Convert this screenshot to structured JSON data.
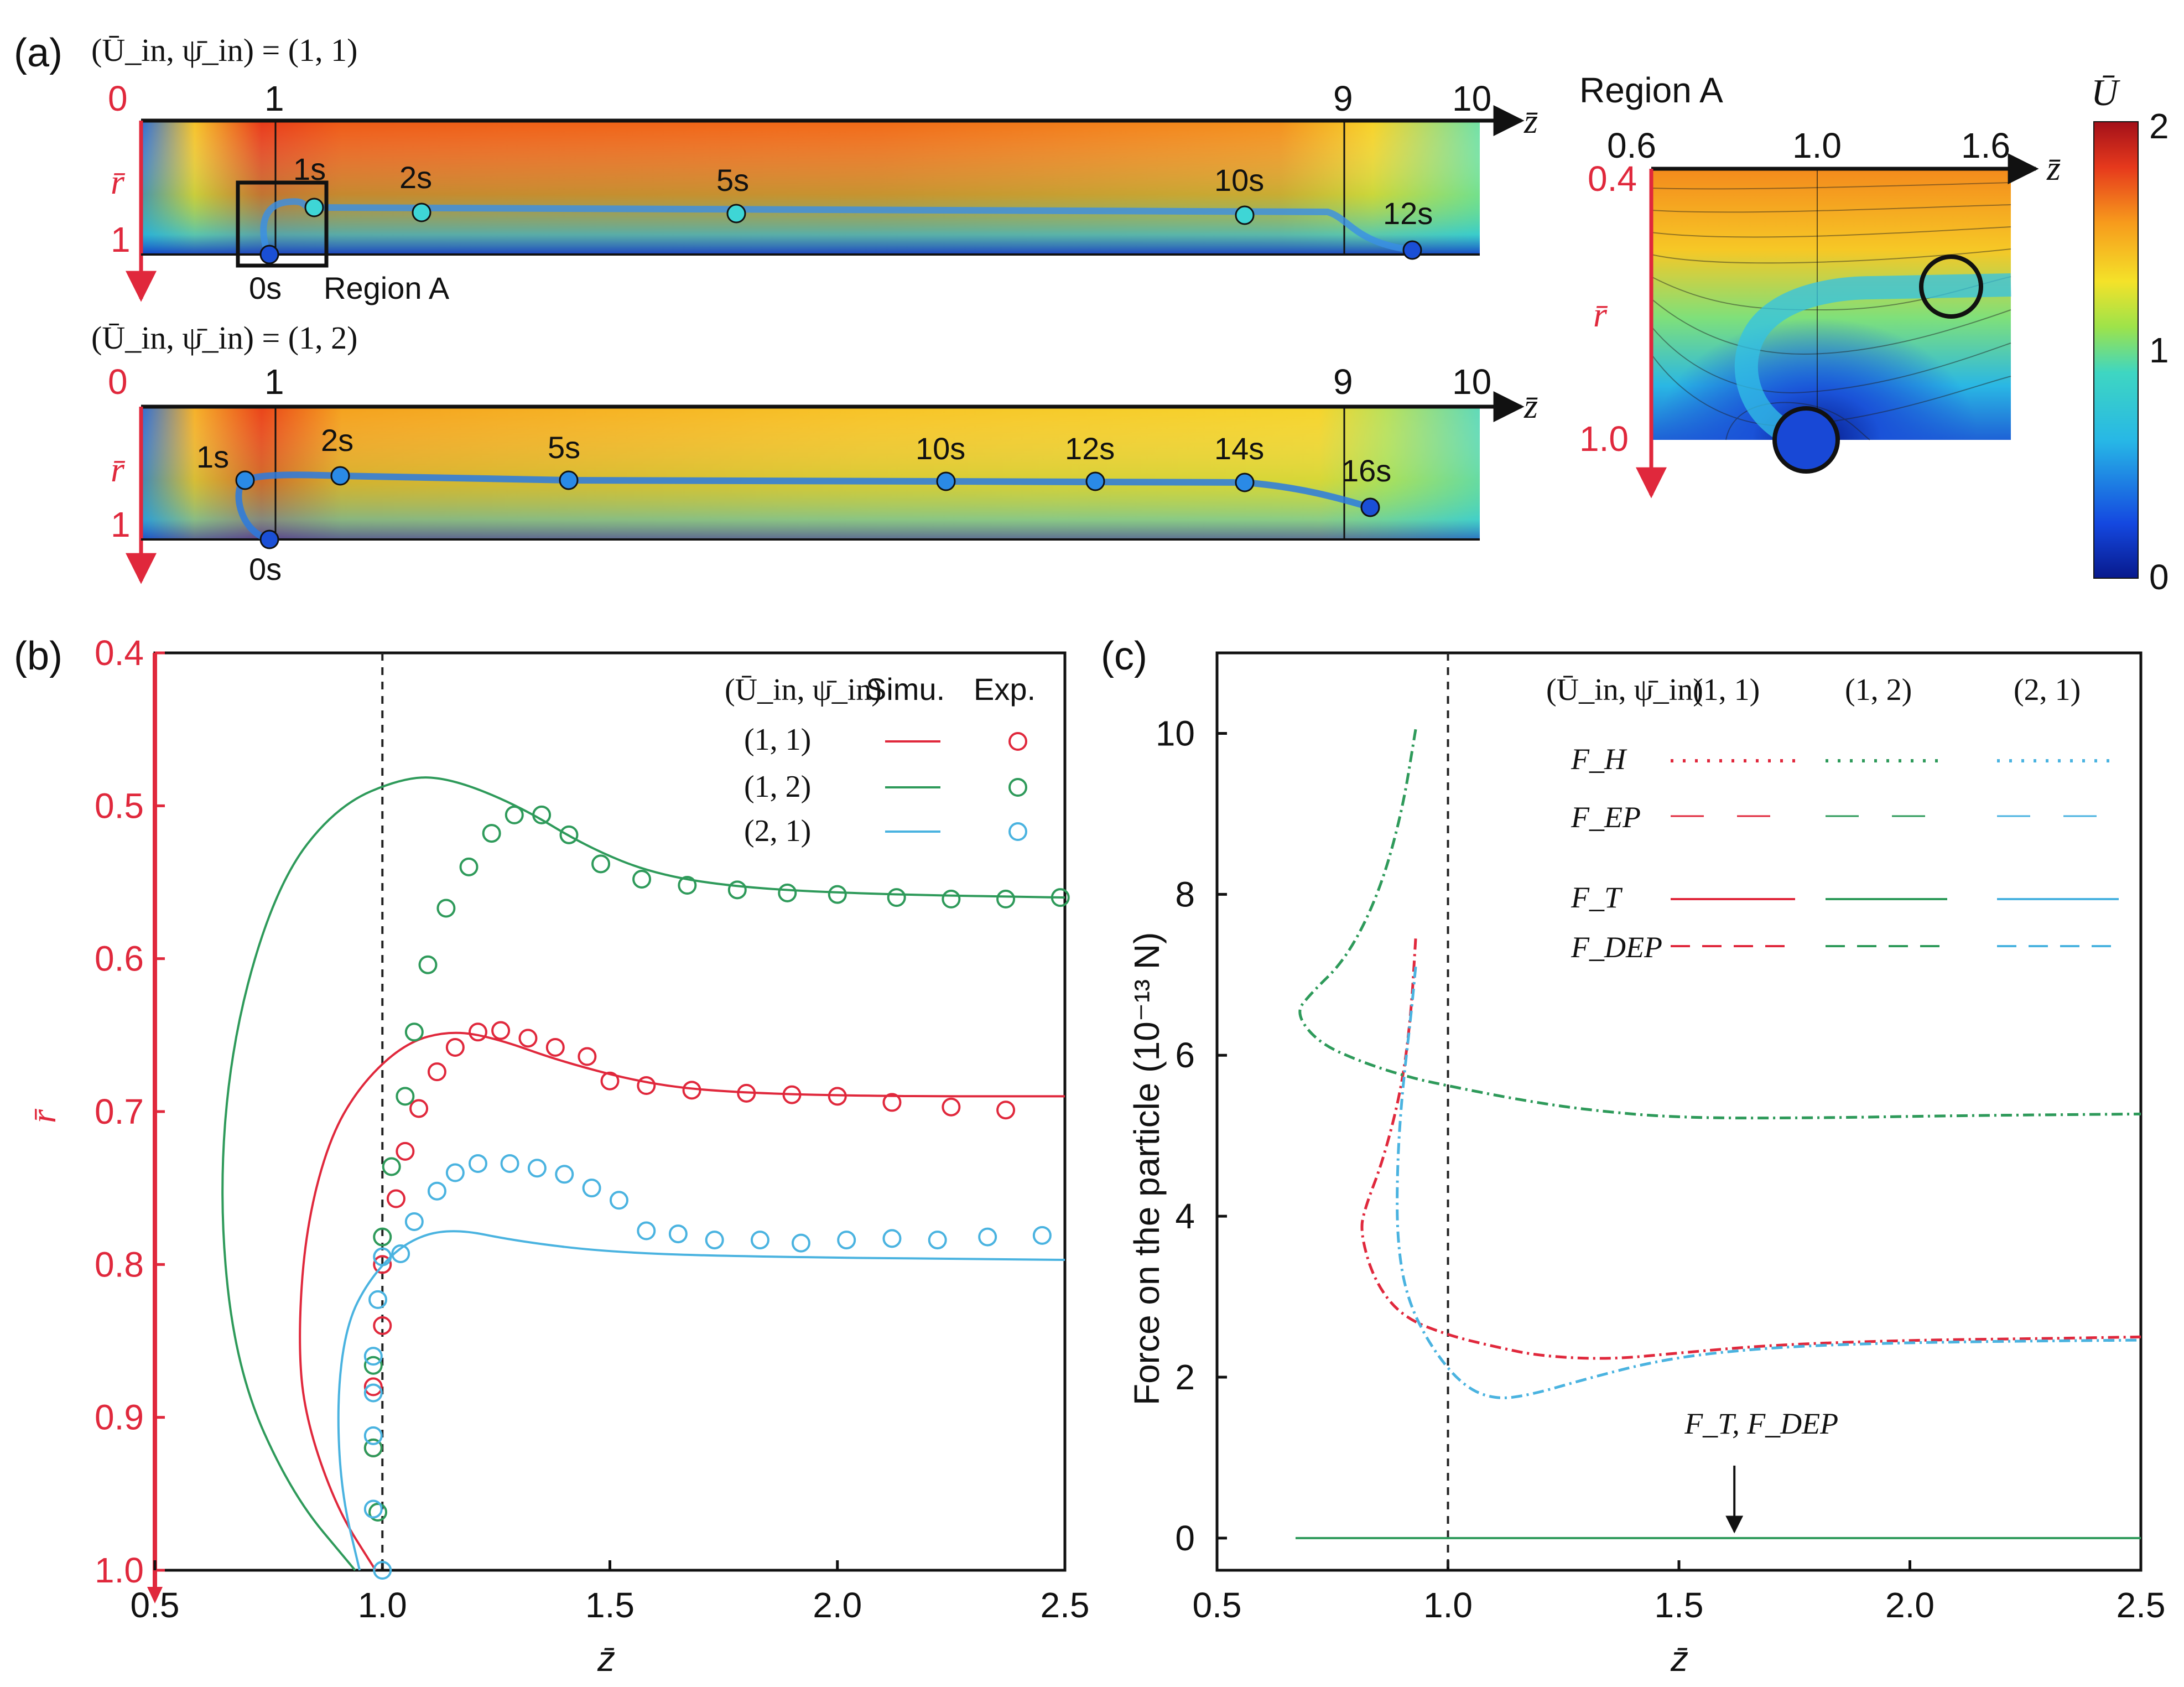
{
  "figure": {
    "panel_a_label": "(a)",
    "panel_b_label": "(b)",
    "panel_c_label": "(c)"
  },
  "colors": {
    "red": "#e0283c",
    "green": "#2e9a5a",
    "blue": "#4ab3e0",
    "axis_red": "#e0283c"
  },
  "panel_a": {
    "top": {
      "condition": "(Ū_in, ψ̄_in) = (1, 1)",
      "z_ticks": [
        "0",
        "1",
        "9",
        "10"
      ],
      "r_ticks": [
        "1"
      ],
      "r_axis": "r̄",
      "z_axis": "z̄",
      "time_labels": [
        "1s",
        "2s",
        "5s",
        "10s",
        "12s",
        "0s"
      ],
      "region_label": "Region A"
    },
    "bottom": {
      "condition": "(Ū_in, ψ̄_in) = (1, 2)",
      "z_ticks": [
        "0",
        "1",
        "9",
        "10"
      ],
      "r_ticks": [
        "1"
      ],
      "r_axis": "r̄",
      "z_axis": "z̄",
      "time_labels": [
        "1s",
        "2s",
        "5s",
        "10s",
        "12s",
        "14s",
        "16s",
        "0s"
      ]
    },
    "region_a": {
      "title": "Region A",
      "z_ticks": [
        "0.6",
        "1.0",
        "1.6"
      ],
      "r_ticks": [
        "0.4",
        "1.0"
      ],
      "r_axis": "r̄",
      "z_axis": "z̄"
    },
    "colorbar": {
      "label": "Ū",
      "ticks": [
        "2",
        "1",
        "0"
      ],
      "range": [
        0,
        2
      ]
    }
  },
  "chart_data": [
    {
      "panel": "b",
      "type": "line",
      "title": "",
      "xlabel": "z̄",
      "ylabel": "r̄",
      "xlim": [
        0.5,
        2.5
      ],
      "ylim": [
        0.4,
        1.0
      ],
      "y_inverted": true,
      "x_ticks": [
        "0.5",
        "1.0",
        "1.5",
        "2.0",
        "2.5"
      ],
      "y_ticks": [
        "0.4",
        "0.5",
        "0.6",
        "0.7",
        "0.8",
        "0.9",
        "1.0"
      ],
      "legend": {
        "header": "(Ū_in, ψ̄_in)",
        "col_simu": "Simu.",
        "col_exp": "Exp.",
        "entries": [
          "(1, 1)",
          "(1, 2)",
          "(2, 1)"
        ]
      },
      "vline_x": 1.0,
      "series": [
        {
          "name": "(1, 1)",
          "color": "#e0283c",
          "simu": [
            [
              0.985,
              1.0
            ],
            [
              0.9,
              0.96
            ],
            [
              0.83,
              0.9
            ],
            [
              0.815,
              0.85
            ],
            [
              0.83,
              0.78
            ],
            [
              0.88,
              0.72
            ],
            [
              0.95,
              0.683
            ],
            [
              1.05,
              0.655
            ],
            [
              1.15,
              0.647
            ],
            [
              1.25,
              0.652
            ],
            [
              1.4,
              0.668
            ],
            [
              1.6,
              0.683
            ],
            [
              1.8,
              0.688
            ],
            [
              2.1,
              0.69
            ],
            [
              2.5,
              0.69
            ]
          ],
          "exp": [
            [
              0.98,
              0.92
            ],
            [
              0.98,
              0.88
            ],
            [
              1.0,
              0.84
            ],
            [
              1.0,
              0.8
            ],
            [
              1.03,
              0.757
            ],
            [
              1.05,
              0.726
            ],
            [
              1.08,
              0.698
            ],
            [
              1.12,
              0.674
            ],
            [
              1.16,
              0.658
            ],
            [
              1.21,
              0.648
            ],
            [
              1.26,
              0.647
            ],
            [
              1.32,
              0.652
            ],
            [
              1.38,
              0.658
            ],
            [
              1.45,
              0.664
            ],
            [
              1.5,
              0.68
            ],
            [
              1.58,
              0.683
            ],
            [
              1.68,
              0.686
            ],
            [
              1.8,
              0.688
            ],
            [
              1.9,
              0.689
            ],
            [
              2.0,
              0.69
            ],
            [
              2.12,
              0.694
            ],
            [
              2.25,
              0.697
            ],
            [
              2.37,
              0.699
            ]
          ]
        },
        {
          "name": "(1, 2)",
          "color": "#2e9a5a",
          "simu": [
            [
              0.94,
              1.0
            ],
            [
              0.8,
              0.95
            ],
            [
              0.68,
              0.87
            ],
            [
              0.64,
              0.76
            ],
            [
              0.67,
              0.65
            ],
            [
              0.77,
              0.55
            ],
            [
              0.9,
              0.5
            ],
            [
              1.05,
              0.481
            ],
            [
              1.15,
              0.482
            ],
            [
              1.3,
              0.5
            ],
            [
              1.45,
              0.527
            ],
            [
              1.6,
              0.545
            ],
            [
              1.8,
              0.554
            ],
            [
              2.1,
              0.558
            ],
            [
              2.5,
              0.56
            ]
          ],
          "exp": [
            [
              0.99,
              0.962
            ],
            [
              0.98,
              0.92
            ],
            [
              0.98,
              0.866
            ],
            [
              1.0,
              0.782
            ],
            [
              1.02,
              0.736
            ],
            [
              1.05,
              0.69
            ],
            [
              1.07,
              0.648
            ],
            [
              1.1,
              0.604
            ],
            [
              1.14,
              0.567
            ],
            [
              1.19,
              0.54
            ],
            [
              1.24,
              0.518
            ],
            [
              1.29,
              0.506
            ],
            [
              1.35,
              0.506
            ],
            [
              1.41,
              0.519
            ],
            [
              1.48,
              0.538
            ],
            [
              1.57,
              0.548
            ],
            [
              1.67,
              0.552
            ],
            [
              1.78,
              0.555
            ],
            [
              1.89,
              0.557
            ],
            [
              2.0,
              0.558
            ],
            [
              2.13,
              0.56
            ],
            [
              2.25,
              0.561
            ],
            [
              2.37,
              0.561
            ],
            [
              2.49,
              0.56
            ]
          ]
        },
        {
          "name": "(2, 1)",
          "color": "#4ab3e0",
          "simu": [
            [
              0.95,
              1.0
            ],
            [
              0.91,
              0.95
            ],
            [
              0.9,
              0.89
            ],
            [
              0.92,
              0.84
            ],
            [
              0.97,
              0.81
            ],
            [
              1.05,
              0.785
            ],
            [
              1.15,
              0.776
            ],
            [
              1.3,
              0.785
            ],
            [
              1.5,
              0.792
            ],
            [
              1.8,
              0.795
            ],
            [
              2.5,
              0.797
            ]
          ],
          "exp": [
            [
              1.0,
              1.0
            ],
            [
              0.98,
              0.96
            ],
            [
              0.98,
              0.912
            ],
            [
              0.98,
              0.884
            ],
            [
              0.98,
              0.86
            ],
            [
              0.99,
              0.823
            ],
            [
              1.0,
              0.795
            ],
            [
              1.04,
              0.793
            ],
            [
              1.07,
              0.772
            ],
            [
              1.12,
              0.752
            ],
            [
              1.16,
              0.74
            ],
            [
              1.21,
              0.734
            ],
            [
              1.28,
              0.734
            ],
            [
              1.34,
              0.737
            ],
            [
              1.4,
              0.741
            ],
            [
              1.46,
              0.75
            ],
            [
              1.52,
              0.758
            ],
            [
              1.58,
              0.778
            ],
            [
              1.65,
              0.78
            ],
            [
              1.73,
              0.784
            ],
            [
              1.83,
              0.784
            ],
            [
              1.92,
              0.786
            ],
            [
              2.02,
              0.784
            ],
            [
              2.12,
              0.783
            ],
            [
              2.22,
              0.784
            ],
            [
              2.33,
              0.782
            ],
            [
              2.45,
              0.781
            ]
          ]
        }
      ]
    },
    {
      "panel": "c",
      "type": "line",
      "title": "",
      "xlabel": "z̄",
      "ylabel": "Force on the particle (10⁻¹³ N)",
      "xlim": [
        0.5,
        2.5
      ],
      "ylim": [
        -0.4,
        11
      ],
      "x_ticks": [
        "0.5",
        "1.0",
        "1.5",
        "2.0",
        "2.5"
      ],
      "y_ticks": [
        "0",
        "2",
        "4",
        "6",
        "8",
        "10"
      ],
      "vline_x": 1.0,
      "legend": {
        "header": "(Ū_in, ψ̄_in)",
        "columns": [
          "(1, 1)",
          "(1, 2)",
          "(2, 1)"
        ],
        "rows": [
          "F_H",
          "F_EP",
          "F_T",
          "F_DEP"
        ]
      },
      "annotation": "F_T, F_DEP",
      "annotation_x": 1.62,
      "series": [
        {
          "name": "(1, 1)",
          "color": "#e0283c",
          "force": [
            [
              0.93,
              7.45
            ],
            [
              0.92,
              6.5
            ],
            [
              0.9,
              5.6
            ],
            [
              0.86,
              4.7
            ],
            [
              0.82,
              4.1
            ],
            [
              0.81,
              3.8
            ],
            [
              0.84,
              3.2
            ],
            [
              0.9,
              2.75
            ],
            [
              1.0,
              2.52
            ],
            [
              1.1,
              2.38
            ],
            [
              1.2,
              2.26
            ],
            [
              1.35,
              2.22
            ],
            [
              1.5,
              2.3
            ],
            [
              1.7,
              2.4
            ],
            [
              2.0,
              2.46
            ],
            [
              2.3,
              2.48
            ],
            [
              2.5,
              2.5
            ]
          ]
        },
        {
          "name": "(1, 2)",
          "color": "#2e9a5a",
          "force": [
            [
              0.93,
              10.05
            ],
            [
              0.9,
              9.0
            ],
            [
              0.85,
              8.0
            ],
            [
              0.78,
              7.2
            ],
            [
              0.7,
              6.75
            ],
            [
              0.67,
              6.52
            ],
            [
              0.72,
              6.15
            ],
            [
              0.82,
              5.9
            ],
            [
              0.92,
              5.72
            ],
            [
              1.0,
              5.62
            ],
            [
              1.15,
              5.45
            ],
            [
              1.3,
              5.32
            ],
            [
              1.5,
              5.22
            ],
            [
              1.8,
              5.22
            ],
            [
              2.1,
              5.25
            ],
            [
              2.5,
              5.27
            ]
          ]
        },
        {
          "name": "(2, 1)",
          "color": "#4ab3e0",
          "force": [
            [
              0.93,
              7.1
            ],
            [
              0.92,
              6.5
            ],
            [
              0.9,
              5.5
            ],
            [
              0.89,
              4.6
            ],
            [
              0.89,
              3.7
            ],
            [
              0.91,
              3.0
            ],
            [
              0.96,
              2.4
            ],
            [
              1.03,
              1.9
            ],
            [
              1.1,
              1.72
            ],
            [
              1.18,
              1.78
            ],
            [
              1.3,
              1.98
            ],
            [
              1.45,
              2.2
            ],
            [
              1.6,
              2.32
            ],
            [
              1.8,
              2.4
            ],
            [
              2.1,
              2.44
            ],
            [
              2.5,
              2.46
            ]
          ]
        },
        {
          "name": "F_T, F_DEP",
          "color": "#2e9a5a",
          "force": [
            [
              0.67,
              0.0
            ],
            [
              1.0,
              0.0
            ],
            [
              1.5,
              0.0
            ],
            [
              2.0,
              0.0
            ],
            [
              2.5,
              0.0
            ]
          ]
        }
      ]
    }
  ]
}
